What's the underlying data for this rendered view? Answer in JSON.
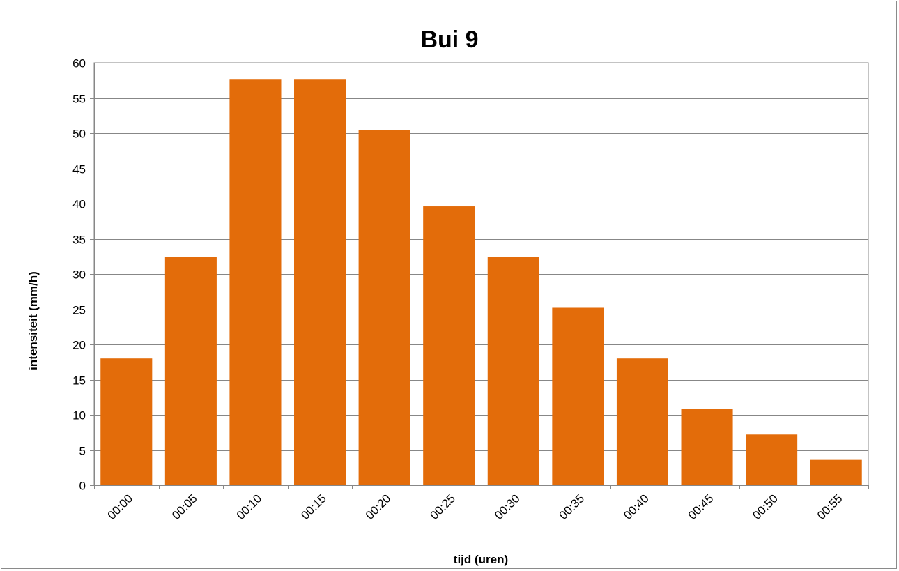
{
  "chart_data": {
    "type": "bar",
    "title": "Bui 9",
    "xlabel": "tijd (uren)",
    "ylabel": "intensiteit (mm/h)",
    "categories": [
      "00:00",
      "00:05",
      "00:10",
      "00:15",
      "00:20",
      "00:25",
      "00:30",
      "00:35",
      "00:40",
      "00:45",
      "00:50",
      "00:55"
    ],
    "values": [
      18.0,
      32.4,
      57.6,
      57.6,
      50.4,
      39.6,
      32.4,
      25.2,
      18.0,
      10.8,
      7.2,
      3.6
    ],
    "ylim": [
      0,
      60
    ],
    "yticks": [
      0,
      5,
      10,
      15,
      20,
      25,
      30,
      35,
      40,
      45,
      50,
      55,
      60
    ],
    "grid": true,
    "legend": "none",
    "bar_color": "#E36C0A",
    "grid_color": "#878787",
    "axis_color": "#878787"
  }
}
